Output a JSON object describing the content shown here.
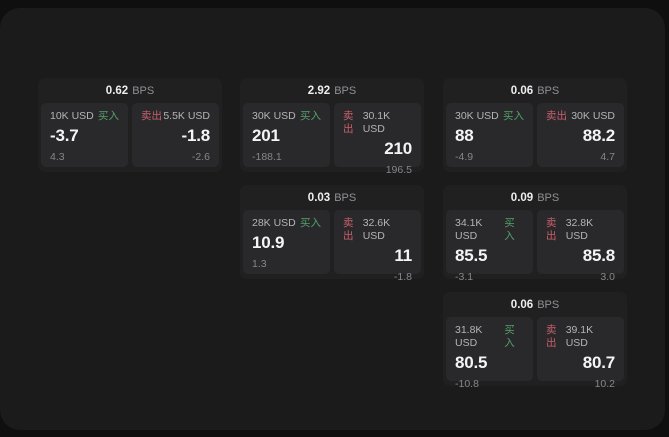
{
  "colors": {
    "background": "#0f0f10",
    "panel": "#1b1b1c",
    "card": "#202021",
    "subcard": "#29292b",
    "buy_green": "#54a06a",
    "sell_red": "#c95f6c",
    "value_white": "#f4f4f6",
    "label_gray": "#b4b4b8",
    "muted_gray": "#86868b"
  },
  "cards": [
    {
      "bps": "0.62",
      "bps_unit": "BPS",
      "buy": {
        "amount": "10K USD",
        "label": "买入",
        "value": "-3.7",
        "delta": "4.3"
      },
      "sell": {
        "label": "卖出",
        "amount": "5.5K USD",
        "value": "-1.8",
        "delta": "-2.6"
      }
    },
    {
      "bps": "2.92",
      "bps_unit": "BPS",
      "buy": {
        "amount": "30K USD",
        "label": "买入",
        "value": "201",
        "delta": "-188.1"
      },
      "sell": {
        "label": "卖出",
        "amount": "30.1K USD",
        "value": "210",
        "delta": "196.5"
      }
    },
    {
      "bps": "0.06",
      "bps_unit": "BPS",
      "buy": {
        "amount": "30K USD",
        "label": "买入",
        "value": "88",
        "delta": "-4.9"
      },
      "sell": {
        "label": "卖出",
        "amount": "30K USD",
        "value": "88.2",
        "delta": "4.7"
      }
    },
    {
      "bps": "0.03",
      "bps_unit": "BPS",
      "buy": {
        "amount": "28K USD",
        "label": "买入",
        "value": "10.9",
        "delta": "1.3"
      },
      "sell": {
        "label": "卖出",
        "amount": "32.6K USD",
        "value": "11",
        "delta": "-1.8"
      }
    },
    {
      "bps": "0.09",
      "bps_unit": "BPS",
      "buy": {
        "amount": "34.1K USD",
        "label": "买入",
        "value": "85.5",
        "delta": "-3.1"
      },
      "sell": {
        "label": "卖出",
        "amount": "32.8K USD",
        "value": "85.8",
        "delta": "3.0"
      }
    },
    {
      "bps": "0.06",
      "bps_unit": "BPS",
      "buy": {
        "amount": "31.8K USD",
        "label": "买入",
        "value": "80.5",
        "delta": "-10.8"
      },
      "sell": {
        "label": "卖出",
        "amount": "39.1K USD",
        "value": "80.7",
        "delta": "10.2"
      }
    }
  ]
}
